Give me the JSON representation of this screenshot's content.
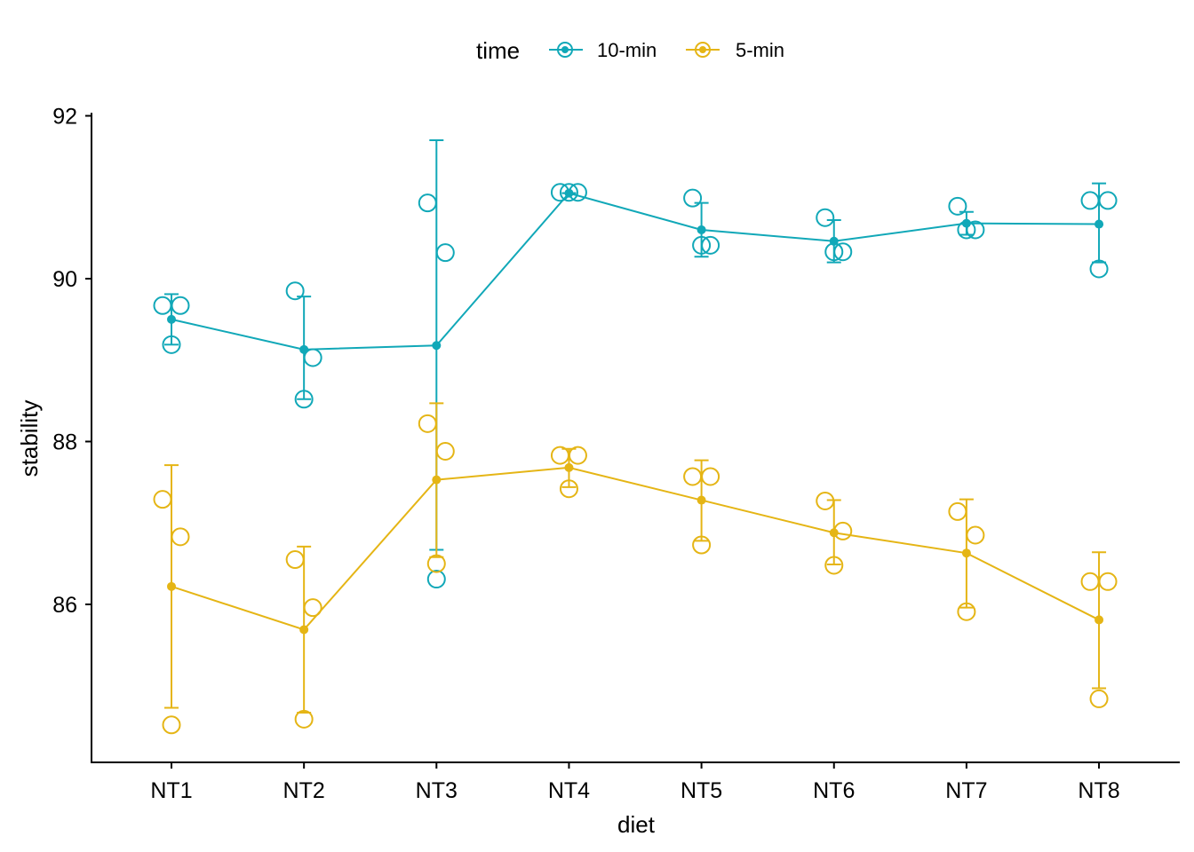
{
  "chart_data": {
    "type": "line",
    "title": "",
    "xlabel": "diet",
    "ylabel": "stability",
    "categories": [
      "NT1",
      "NT2",
      "NT3",
      "NT4",
      "NT5",
      "NT6",
      "NT7",
      "NT8"
    ],
    "ylim": [
      84.1,
      92.1
    ],
    "yticks": [
      86,
      88,
      90,
      92
    ],
    "grid": false,
    "legend": {
      "title": "time",
      "position": "top",
      "entries": [
        "10-min",
        "5-min"
      ]
    },
    "colors": {
      "10-min": "#11A8B8",
      "5-min": "#E5B515"
    },
    "series": [
      {
        "name": "10-min",
        "mean": [
          89.5,
          89.13,
          89.18,
          91.05,
          90.6,
          90.46,
          90.68,
          90.67
        ],
        "err_low": [
          89.19,
          88.52,
          86.67,
          91.05,
          90.27,
          90.2,
          90.54,
          90.2
        ],
        "err_high": [
          89.81,
          89.78,
          91.7,
          91.05,
          90.93,
          90.72,
          90.82,
          91.17
        ],
        "points": [
          [
            89.67,
            89.67,
            89.19
          ],
          [
            89.85,
            89.03,
            88.52
          ],
          [
            90.93,
            90.32,
            86.31
          ],
          [
            91.06,
            91.06,
            91.06
          ],
          [
            90.99,
            90.41,
            90.41
          ],
          [
            90.75,
            90.33,
            90.33
          ],
          [
            90.89,
            90.6,
            90.6
          ],
          [
            90.96,
            90.96,
            90.12
          ]
        ]
      },
      {
        "name": "5-min",
        "mean": [
          86.22,
          85.69,
          87.53,
          87.68,
          87.28,
          86.88,
          86.63,
          85.81
        ],
        "err_low": [
          84.73,
          84.67,
          86.58,
          87.44,
          86.78,
          86.49,
          85.96,
          84.97
        ],
        "err_high": [
          87.71,
          86.71,
          88.47,
          87.91,
          87.77,
          87.28,
          87.29,
          86.64
        ],
        "points": [
          [
            87.29,
            86.83,
            84.52
          ],
          [
            86.55,
            85.96,
            84.59
          ],
          [
            88.22,
            87.88,
            86.5
          ],
          [
            87.83,
            87.83,
            87.42
          ],
          [
            87.57,
            87.57,
            86.73
          ],
          [
            87.27,
            86.9,
            86.48
          ],
          [
            87.14,
            86.85,
            85.91
          ],
          [
            86.28,
            86.28,
            84.84
          ]
        ]
      }
    ]
  }
}
